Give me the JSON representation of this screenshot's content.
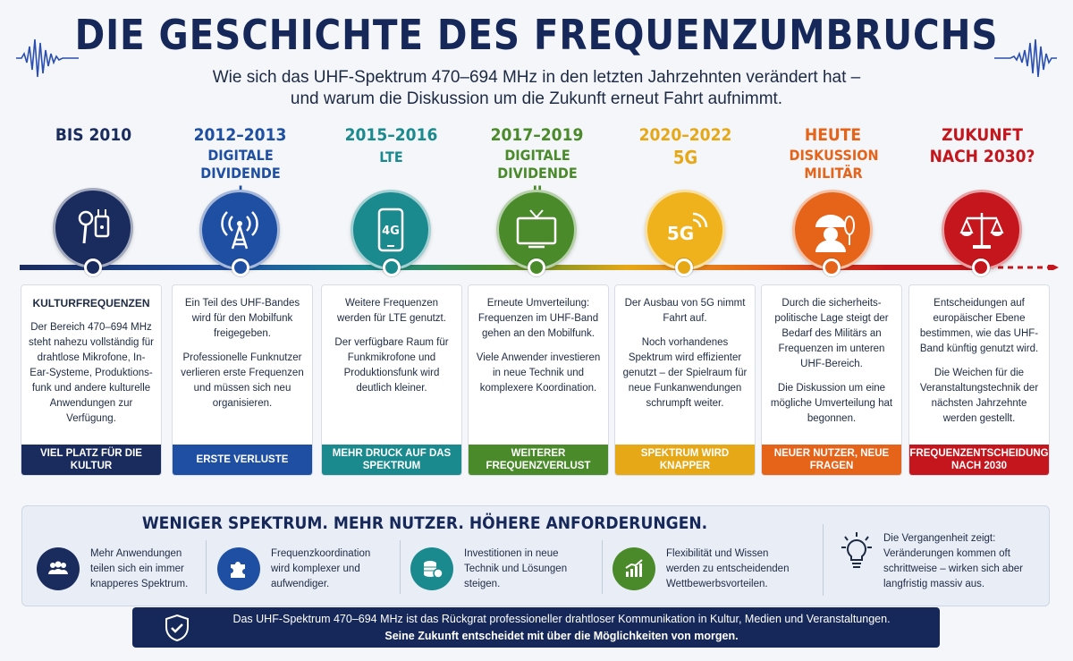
{
  "header": {
    "title": "DIE GESCHICHTE DES FREQUENZUMBRUCHS",
    "subtitle_line1": "Wie sich das UHF-Spektrum 470–694 MHz in den letzten Jahrzehnten verändert hat –",
    "subtitle_line2": "und warum die Diskussion um die Zukunft erneut Fahrt aufnimmt."
  },
  "stages": [
    {
      "year": "BIS 2010",
      "label": "",
      "color": "#1a2b5e",
      "icon": "microphone-icon",
      "card": [
        "KULTURFREQUENZEN",
        "Der Bereich 470–694 MHz steht nahezu vollständig für drahtlose Mikrofone, In-Ear-Systeme, Produktions-funk und andere kulturelle Anwendungen zur Verfügung."
      ],
      "footer": "VIEL PLATZ FÜR DIE KULTUR"
    },
    {
      "year": "2012–2013",
      "label": "DIGITALE DIVIDENDE I",
      "color": "#1f4fa3",
      "icon": "radio-tower-icon",
      "card": [
        "Ein Teil des UHF-Bandes wird für den Mobilfunk freigegeben.",
        "Professionelle Funknutzer verlieren erste Frequenzen und müssen sich neu organisieren."
      ],
      "footer": "ERSTE VERLUSTE"
    },
    {
      "year": "2015–2016",
      "label": "LTE",
      "color": "#1a8a8f",
      "icon": "smartphone-4g-icon",
      "card": [
        "Weitere Frequenzen werden für LTE genutzt.",
        "Der verfügbare Raum für Funkmikrofone und Produktionsfunk wird deutlich kleiner."
      ],
      "footer": "MEHR DRUCK AUF DAS SPEKTRUM"
    },
    {
      "year": "2017–2019",
      "label": "DIGITALE DIVIDENDE II",
      "color": "#4a8a2a",
      "icon": "television-icon",
      "card": [
        "Erneute Umverteilung: Frequenzen im UHF-Band gehen an den Mobilfunk.",
        "Viele Anwender investieren in neue Technik und komplexere Koordination."
      ],
      "footer": "WEITERER FREQUENZVERLUST"
    },
    {
      "year": "2020–2022",
      "label": "5G",
      "color": "#e6a817",
      "icon": "5g-signal-icon",
      "card": [
        "Der Ausbau von 5G nimmt Fahrt auf.",
        "Noch vorhandenes Spektrum wird effizienter genutzt – der Spielraum für neue Funkanwendungen schrumpft weiter."
      ],
      "footer": "SPEKTRUM WIRD KNAPPER"
    },
    {
      "year": "HEUTE",
      "label": "DISKUSSION MILITÄR",
      "color": "#e6631a",
      "icon": "soldier-icon",
      "card": [
        "Durch die sicherheits-politische Lage steigt der Bedarf des Militärs an Frequenzen im unteren UHF-Bereich.",
        "Die Diskussion um eine mögliche Umverteilung hat begonnen."
      ],
      "footer": "NEUER NUTZER, NEUE FRAGEN"
    },
    {
      "year": "ZUKUNFT",
      "label": "NACH 2030?",
      "color": "#c4161c",
      "icon": "scales-icon",
      "card": [
        "Entscheidungen auf europäischer Ebene bestimmen, wie das UHF-Band künftig genutzt wird.",
        "Die Weichen für die Veranstaltungstechnik der nächsten Jahrzehnte werden gestellt."
      ],
      "footer": "FREQUENZENTSCHEIDUNG NACH 2030"
    }
  ],
  "summary": {
    "title": "WENIGER SPEKTRUM. MEHR NUTZER. HÖHERE ANFORDERUNGEN.",
    "points": [
      {
        "text": "Mehr Anwendungen teilen sich ein immer knapperes Spektrum.",
        "icon": "users-icon",
        "color": "#1a2b5e"
      },
      {
        "text": "Frequenzkoordination wird komplexer und aufwendiger.",
        "icon": "puzzle-icon",
        "color": "#1f4fa3"
      },
      {
        "text": "Investitionen in neue Technik und Lösungen steigen.",
        "icon": "coins-icon",
        "color": "#1a8a8f"
      },
      {
        "text": "Flexibilität und Wissen werden zu entscheidenden Wettbewerbsvorteilen.",
        "icon": "growth-chart-icon",
        "color": "#4a8a2a"
      }
    ],
    "lesson": "Die Vergangenheit zeigt: Veränderungen kommen oft schrittweise – wirken sich aber langfristig massiv aus.",
    "lesson_icon": "lightbulb-icon"
  },
  "banner": {
    "line1": "Das UHF-Spektrum 470–694 MHz ist das Rückgrat professioneller drahtloser Kommunikation in Kultur, Medien und Veranstaltungen.",
    "line2": "Seine Zukunft entscheidet mit über die Möglichkeiten von morgen.",
    "icon": "shield-check-icon"
  }
}
